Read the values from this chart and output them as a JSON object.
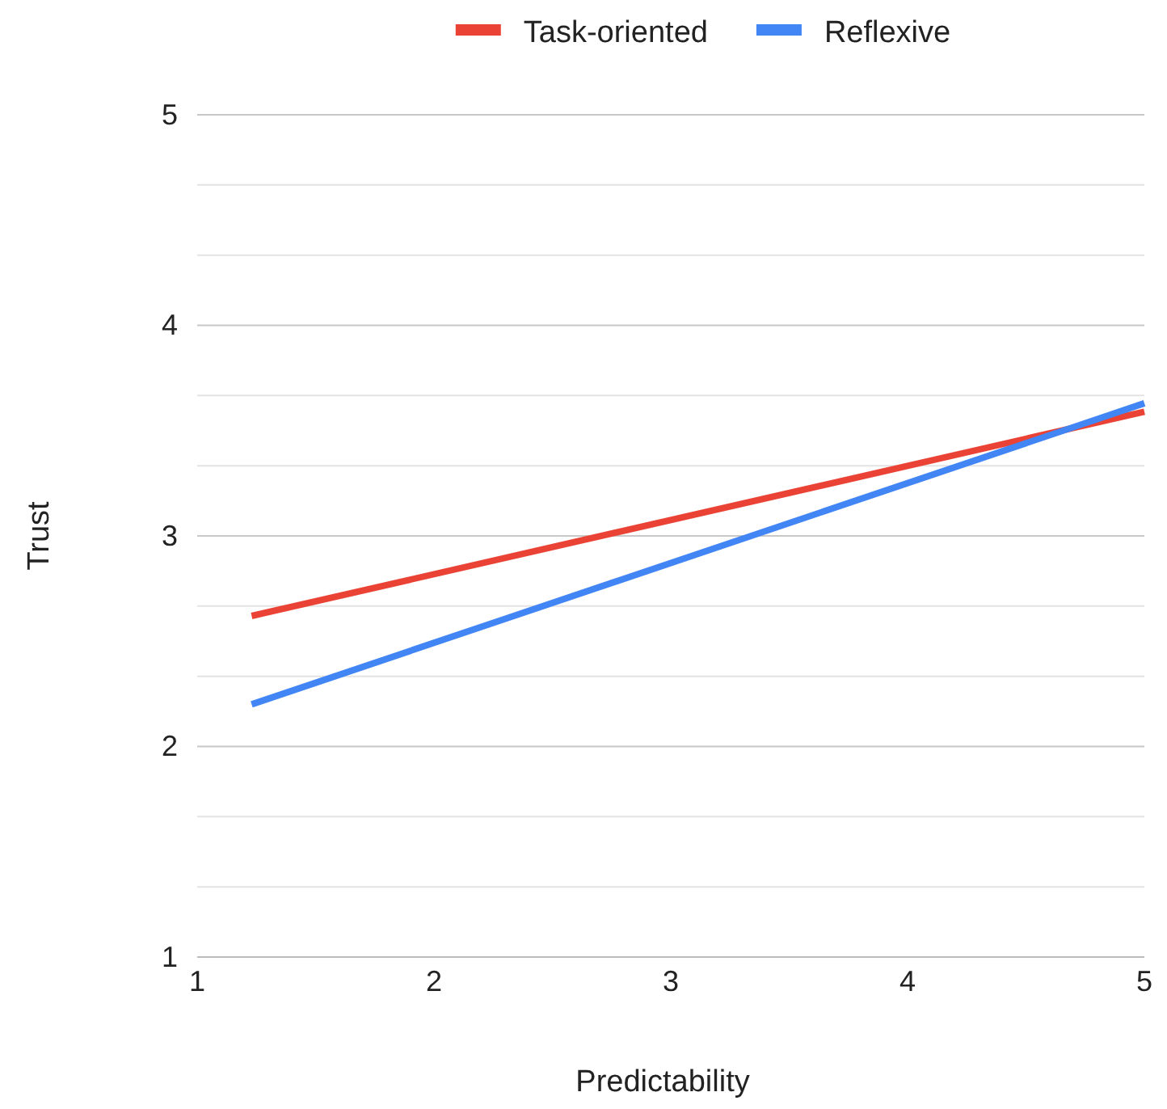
{
  "chart_data": {
    "type": "line",
    "xlabel": "Predictability",
    "ylabel": "Trust",
    "xlim": [
      1,
      5
    ],
    "xticks": [
      1,
      2,
      3,
      4,
      5
    ],
    "ylim": [
      1,
      5
    ],
    "yticks": [
      1,
      {
        "value": 1.333,
        "label": null
      },
      {
        "value": 1.667,
        "label": null
      },
      2,
      {
        "value": 2.333,
        "label": null
      },
      {
        "value": 2.667,
        "label": null
      },
      3,
      {
        "value": 3.333,
        "label": null
      },
      {
        "value": 3.667,
        "label": null
      },
      4,
      {
        "value": 4.333,
        "label": null
      },
      {
        "value": 4.667,
        "label": null
      },
      5
    ],
    "x": [
      1.23,
      5
    ],
    "grid": "y",
    "legend": "top",
    "marker": "none",
    "line_style": "solid",
    "series": [
      {
        "name": "Task-oriented",
        "color": "#ea4335",
        "values": [
          2.62,
          3.59
        ]
      },
      {
        "name": "Reflexive",
        "color": "#4285f4",
        "values": [
          2.2,
          3.63
        ]
      }
    ]
  }
}
